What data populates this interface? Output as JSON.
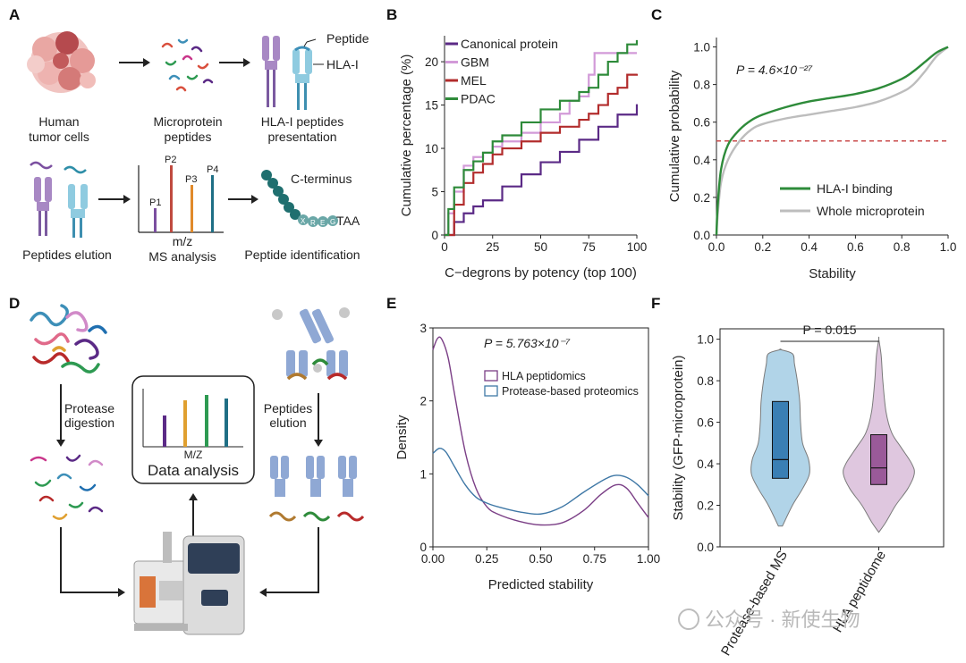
{
  "panel_labels": {
    "A": "A",
    "B": "B",
    "C": "C",
    "D": "D",
    "E": "E",
    "F": "F"
  },
  "panelA": {
    "human_cells": "Human",
    "tumor_cells": "tumor cells",
    "micro_1": "Microprotein",
    "micro_2": "peptides",
    "hla_1": "HLA-I peptides",
    "hla_2": "presentation",
    "peptide_callout": "Peptide",
    "hlai_callout": "HLA-I",
    "elution": "Peptides elution",
    "mz": "m/z",
    "ms_analysis": "MS analysis",
    "peptide_id": "Peptide identification",
    "cterm": "C-terminus",
    "taa": "TAA",
    "peaks": [
      "P1",
      "P2",
      "P3",
      "P4"
    ],
    "bead_letters": [
      "X",
      "R",
      "E",
      "G"
    ]
  },
  "panelD": {
    "protease_1": "Protease",
    "protease_2": "digestion",
    "pelution_1": "Peptides",
    "pelution_2": "elution",
    "mz": "M/Z",
    "data_analysis": "Data analysis"
  },
  "watermark": "公众号 · 新使生物",
  "colors": {
    "canonical": "#5b2a86",
    "gbm": "#d29ad8",
    "mel": "#b22c2c",
    "pdac": "#2e8b3a",
    "hla_binding": "#2e8b3a",
    "whole": "#bdbdbd",
    "ref": "#c94c4c",
    "hla_pep": "#7b3f86",
    "protease": "#3f78a6"
  },
  "chart_data": [
    {
      "panel": "B",
      "type": "line",
      "xlabel": "C−degrons by potency (top 100)",
      "ylabel": "Cumulative percentage (%)",
      "xlim": [
        0,
        100
      ],
      "ylim": [
        0,
        23
      ],
      "xticks": [
        0,
        25,
        50,
        75,
        100
      ],
      "yticks": [
        0,
        5,
        10,
        15,
        20
      ],
      "legend_position": "top-left",
      "series": [
        {
          "name": "Canonical protein",
          "color": "#5b2a86",
          "x": [
            0,
            5,
            10,
            15,
            20,
            30,
            40,
            50,
            60,
            70,
            80,
            90,
            100
          ],
          "y": [
            0,
            1.5,
            2.5,
            3.3,
            4.0,
            5.6,
            7.0,
            8.4,
            9.6,
            11.0,
            12.5,
            13.9,
            15.1
          ]
        },
        {
          "name": "GBM",
          "color": "#d29ad8",
          "x": [
            0,
            2,
            5,
            10,
            15,
            20,
            25,
            30,
            40,
            50,
            60,
            65,
            70,
            75,
            78,
            80,
            90,
            100
          ],
          "y": [
            0,
            2.5,
            5,
            8,
            9,
            9.5,
            10.2,
            10.8,
            11.8,
            13.0,
            14.0,
            15.5,
            16.0,
            18.5,
            21,
            21,
            21,
            21
          ]
        },
        {
          "name": "MEL",
          "color": "#b22c2c",
          "x": [
            0,
            5,
            10,
            15,
            20,
            25,
            30,
            40,
            50,
            60,
            70,
            75,
            80,
            85,
            90,
            95,
            100
          ],
          "y": [
            0,
            3.5,
            6,
            7.2,
            8.2,
            9.3,
            10.0,
            10.8,
            11.8,
            12.5,
            13.3,
            14.0,
            15.0,
            16.3,
            17.0,
            18.5,
            18.6
          ]
        },
        {
          "name": "PDAC",
          "color": "#2e8b3a",
          "x": [
            0,
            2,
            5,
            10,
            15,
            20,
            25,
            30,
            40,
            50,
            60,
            70,
            75,
            80,
            85,
            90,
            95,
            100
          ],
          "y": [
            0,
            3,
            5.5,
            7.5,
            8.5,
            9.5,
            10.8,
            11.5,
            13.0,
            14.5,
            15.5,
            16.5,
            17.0,
            18.5,
            20.0,
            21.0,
            22.0,
            22.5
          ]
        }
      ]
    },
    {
      "panel": "C",
      "type": "line",
      "xlabel": "Stability",
      "ylabel": "Cumulative probability",
      "xlim": [
        0,
        1
      ],
      "ylim": [
        0,
        1.05
      ],
      "xticks": [
        0,
        0.2,
        0.4,
        0.6,
        0.8,
        1.0
      ],
      "yticks": [
        0,
        0.2,
        0.4,
        0.6,
        0.8,
        1.0
      ],
      "annotation": "P = 4.6×10⁻²⁷",
      "ref_line_y": 0.5,
      "legend_position": "bottom-right",
      "series": [
        {
          "name": "HLA-I binding",
          "color": "#2e8b3a",
          "x": [
            0,
            0.005,
            0.02,
            0.05,
            0.1,
            0.15,
            0.2,
            0.3,
            0.4,
            0.5,
            0.6,
            0.7,
            0.8,
            0.85,
            0.9,
            0.95,
            1.0
          ],
          "y": [
            0,
            0.15,
            0.35,
            0.48,
            0.56,
            0.61,
            0.64,
            0.68,
            0.71,
            0.73,
            0.75,
            0.78,
            0.83,
            0.87,
            0.92,
            0.97,
            1.0
          ]
        },
        {
          "name": "Whole microprotein",
          "color": "#bdbdbd",
          "x": [
            0,
            0.005,
            0.02,
            0.05,
            0.1,
            0.15,
            0.2,
            0.3,
            0.4,
            0.5,
            0.6,
            0.7,
            0.8,
            0.85,
            0.9,
            0.95,
            1.0
          ],
          "y": [
            0,
            0.1,
            0.28,
            0.4,
            0.5,
            0.56,
            0.59,
            0.62,
            0.64,
            0.66,
            0.68,
            0.71,
            0.76,
            0.8,
            0.87,
            0.95,
            1.0
          ]
        }
      ]
    },
    {
      "panel": "E",
      "type": "line",
      "xlabel": "Predicted stability",
      "ylabel": "Density",
      "xlim": [
        0,
        1
      ],
      "ylim": [
        0,
        3
      ],
      "xticks": [
        0,
        0.25,
        0.5,
        0.75,
        1.0
      ],
      "yticks": [
        0,
        1,
        2,
        3
      ],
      "annotation": "P = 5.763×10⁻⁷",
      "legend_position": "top-right",
      "series": [
        {
          "name": "HLA peptidomics",
          "color": "#7b3f86",
          "x": [
            0,
            0.02,
            0.04,
            0.07,
            0.1,
            0.15,
            0.2,
            0.25,
            0.3,
            0.4,
            0.5,
            0.6,
            0.7,
            0.78,
            0.85,
            0.9,
            0.95,
            1.0
          ],
          "y": [
            2.7,
            2.85,
            2.85,
            2.6,
            2.1,
            1.3,
            0.8,
            0.55,
            0.45,
            0.35,
            0.3,
            0.33,
            0.5,
            0.72,
            0.85,
            0.8,
            0.6,
            0.4
          ]
        },
        {
          "name": "Protease-based proteomics",
          "color": "#3f78a6",
          "x": [
            0,
            0.03,
            0.06,
            0.1,
            0.15,
            0.2,
            0.25,
            0.3,
            0.4,
            0.5,
            0.6,
            0.7,
            0.8,
            0.85,
            0.9,
            0.95,
            1.0
          ],
          "y": [
            1.28,
            1.35,
            1.3,
            1.1,
            0.85,
            0.68,
            0.6,
            0.55,
            0.48,
            0.45,
            0.55,
            0.75,
            0.93,
            0.98,
            0.95,
            0.85,
            0.7
          ]
        }
      ]
    },
    {
      "panel": "F",
      "type": "violin",
      "ylabel": "Stability (GFP-microprotein)",
      "ylim": [
        0,
        1.05
      ],
      "yticks": [
        0,
        0.2,
        0.4,
        0.6,
        0.8,
        1.0
      ],
      "categories": [
        "Protease-based MS",
        "HLA peptidome"
      ],
      "annotation": "P = 0.015",
      "series": [
        {
          "name": "Protease-based MS",
          "color": "#a9cfe6",
          "box_color": "#3a7fb4",
          "min": 0.1,
          "max": 0.95,
          "q1": 0.33,
          "median": 0.42,
          "q3": 0.7
        },
        {
          "name": "HLA peptidome",
          "color": "#dcc1dc",
          "box_color": "#9a5a99",
          "min": 0.07,
          "max": 1.0,
          "q1": 0.3,
          "median": 0.38,
          "q3": 0.54
        }
      ]
    }
  ]
}
